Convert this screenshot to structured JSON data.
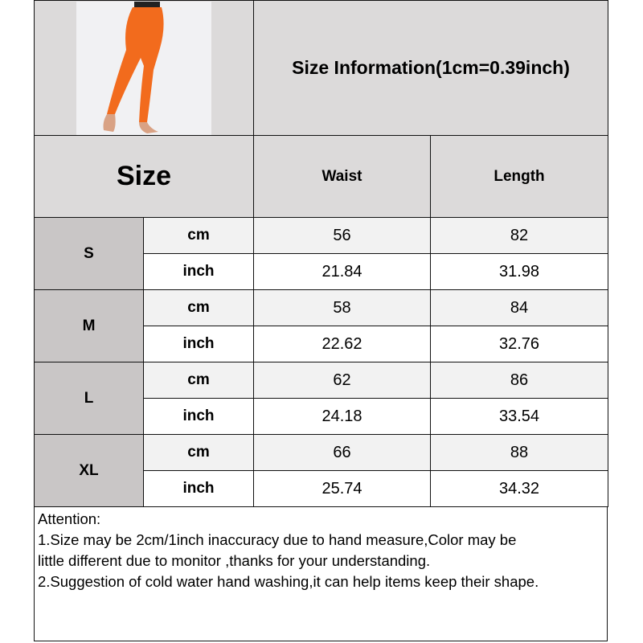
{
  "header": {
    "title": "Size Information(1cm=0.39inch)",
    "product_image": "orange-leggings-photo"
  },
  "columns": {
    "size": "Size",
    "waist": "Waist",
    "length": "Length"
  },
  "units": {
    "cm": "cm",
    "inch": "inch"
  },
  "rows": [
    {
      "size": "S",
      "cm": {
        "waist": "56",
        "length": "82"
      },
      "inch": {
        "waist": "21.84",
        "length": "31.98"
      }
    },
    {
      "size": "M",
      "cm": {
        "waist": "58",
        "length": "84"
      },
      "inch": {
        "waist": "22.62",
        "length": "32.76"
      }
    },
    {
      "size": "L",
      "cm": {
        "waist": "62",
        "length": "86"
      },
      "inch": {
        "waist": "24.18",
        "length": "33.54"
      }
    },
    {
      "size": "XL",
      "cm": {
        "waist": "66",
        "length": "88"
      },
      "inch": {
        "waist": "25.74",
        "length": "34.32"
      }
    }
  ],
  "attention": {
    "heading": "Attention:",
    "lines": [
      "1.Size may be 2cm/1inch inaccuracy due to hand measure,Color may be",
      "little different due to monitor ,thanks for your understanding.",
      "2.Suggestion of cold water hand washing,it can help items keep their shape."
    ]
  },
  "colors": {
    "header_bg": "#dcdada",
    "size_cell_bg": "#c9c6c6",
    "cm_row_bg": "#f2f2f2",
    "product": "#f26b1d"
  }
}
